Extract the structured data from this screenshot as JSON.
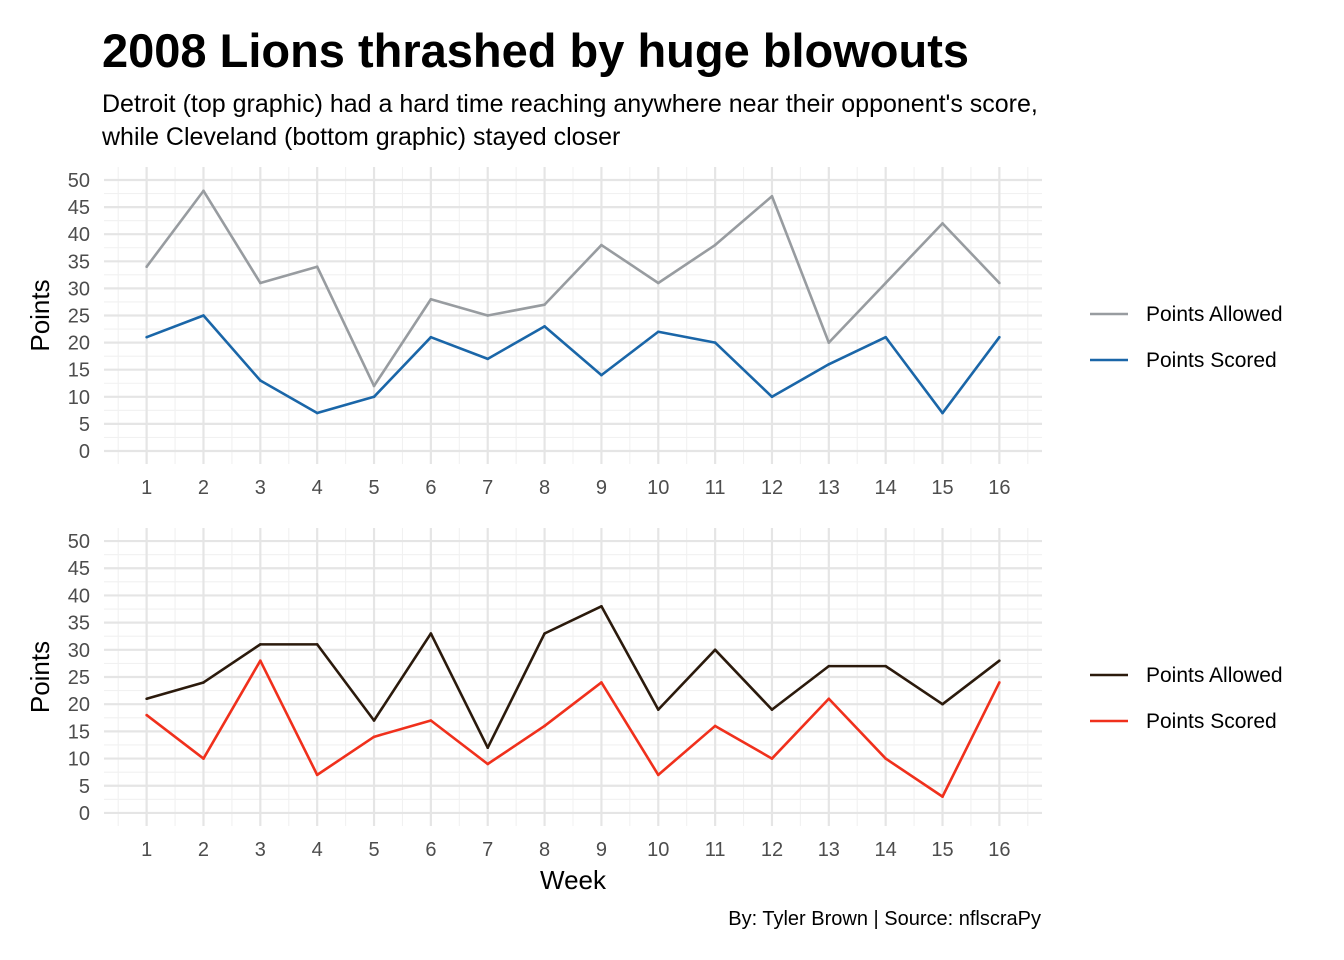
{
  "title": "2008 Lions thrashed by huge blowouts",
  "subtitle_lines": [
    "Detroit (top graphic) had a hard time reaching anywhere near their opponent's score,",
    "while Cleveland (bottom graphic) stayed closer"
  ],
  "caption": "By: Tyler Brown | Source: nflscraPy",
  "chart_data": [
    {
      "type": "line",
      "x": [
        1,
        2,
        3,
        4,
        5,
        6,
        7,
        8,
        9,
        10,
        11,
        12,
        13,
        14,
        15,
        16
      ],
      "series": [
        {
          "name": "Points Allowed",
          "color": "#989ca0",
          "values": [
            34,
            48,
            31,
            34,
            12,
            28,
            25,
            27,
            38,
            31,
            38,
            47,
            20,
            31,
            42,
            31
          ]
        },
        {
          "name": "Points Scored",
          "color": "#1a66a8",
          "values": [
            21,
            25,
            13,
            7,
            10,
            21,
            17,
            23,
            14,
            22,
            20,
            10,
            16,
            21,
            7,
            21
          ]
        }
      ],
      "xlabel": "",
      "ylabel": "Points",
      "xticks": [
        "1",
        "2",
        "3",
        "4",
        "5",
        "6",
        "7",
        "8",
        "9",
        "10",
        "11",
        "12",
        "13",
        "14",
        "15",
        "16"
      ],
      "yticks": [
        "0",
        "5",
        "10",
        "15",
        "20",
        "25",
        "30",
        "35",
        "40",
        "45",
        "50"
      ],
      "xlim": [
        0.25,
        16.75
      ],
      "ylim": [
        -2.4,
        52.4
      ],
      "grid": true,
      "legend": "right"
    },
    {
      "type": "line",
      "x": [
        1,
        2,
        3,
        4,
        5,
        6,
        7,
        8,
        9,
        10,
        11,
        12,
        13,
        14,
        15,
        16
      ],
      "series": [
        {
          "name": "Points Allowed",
          "color": "#2b1a0c",
          "values": [
            21,
            24,
            31,
            31,
            17,
            33,
            12,
            33,
            38,
            19,
            30,
            19,
            27,
            27,
            20,
            28
          ]
        },
        {
          "name": "Points Scored",
          "color": "#f0301c",
          "values": [
            18,
            10,
            28,
            7,
            14,
            17,
            9,
            16,
            24,
            7,
            16,
            10,
            21,
            10,
            3,
            24
          ]
        }
      ],
      "xlabel": "Week",
      "ylabel": "Points",
      "xticks": [
        "1",
        "2",
        "3",
        "4",
        "5",
        "6",
        "7",
        "8",
        "9",
        "10",
        "11",
        "12",
        "13",
        "14",
        "15",
        "16"
      ],
      "yticks": [
        "0",
        "5",
        "10",
        "15",
        "20",
        "25",
        "30",
        "35",
        "40",
        "45",
        "50"
      ],
      "xlim": [
        0.25,
        16.75
      ],
      "ylim": [
        -2.4,
        52.4
      ],
      "grid": true,
      "legend": "right"
    }
  ]
}
